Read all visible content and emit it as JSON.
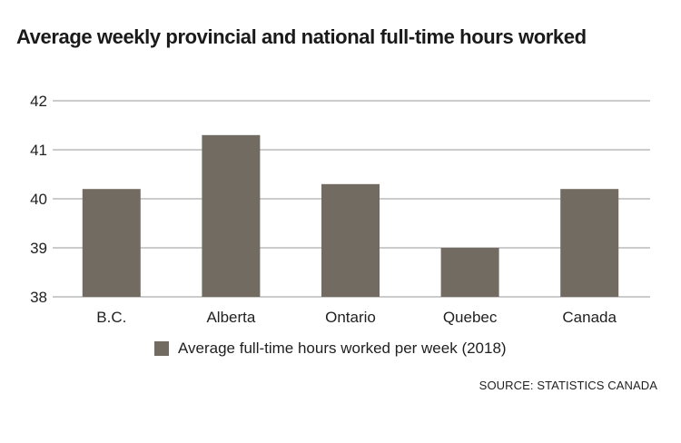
{
  "colors": {
    "bar": "#726b62",
    "grid": "#9a9a9a",
    "text": "#1a1a1a"
  },
  "chart_data": {
    "type": "bar",
    "title": "Average weekly provincial and national full-time hours worked",
    "categories": [
      "B.C.",
      "Alberta",
      "Ontario",
      "Quebec",
      "Canada"
    ],
    "series": [
      {
        "name": "Average full-time hours worked per week (2018)",
        "values": [
          40.2,
          41.3,
          40.3,
          39.0,
          40.2
        ]
      }
    ],
    "ylim": [
      38,
      42
    ],
    "yticks": [
      38,
      39,
      40,
      41,
      42
    ],
    "grid": true,
    "legend_position": "bottom",
    "source": "SOURCE: STATISTICS CANADA"
  }
}
